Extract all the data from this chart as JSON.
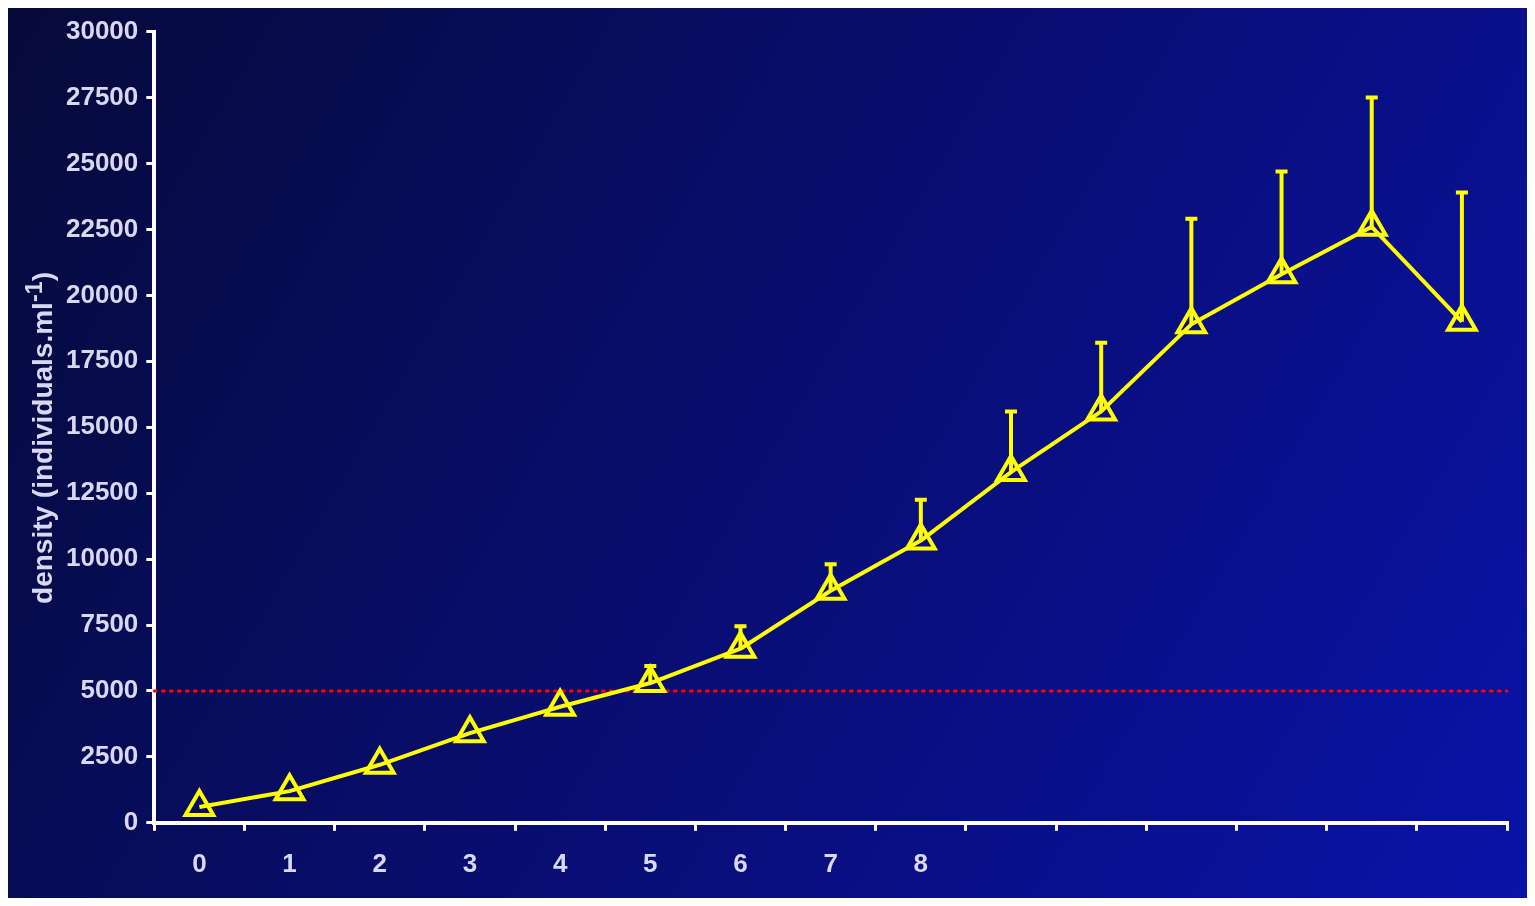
{
  "chart_data": {
    "type": "line",
    "ylabel": "density (individuals.ml$^{-1}$)",
    "categories": [
      "0",
      "1",
      "2",
      "3",
      "4",
      "5",
      "6",
      "7",
      "8",
      null,
      null,
      null,
      null,
      null,
      null
    ],
    "series": [
      {
        "color": "#ffff00",
        "values": [
          600,
          1200,
          2200,
          3400,
          4400,
          5300,
          6600,
          8800,
          10700,
          13300,
          15600,
          18900,
          20800,
          22600,
          19000
        ],
        "errors": [
          null,
          null,
          null,
          null,
          null,
          [
            5300,
            5950
          ],
          [
            6600,
            7450
          ],
          [
            8800,
            9800
          ],
          [
            10700,
            12250
          ],
          [
            13300,
            15600
          ],
          [
            15600,
            18200
          ],
          [
            18900,
            22900
          ],
          [
            20800,
            24700
          ],
          [
            22600,
            27500
          ],
          [
            19000,
            23900
          ]
        ]
      }
    ],
    "ylim": [
      0,
      30000
    ],
    "yticks": [
      0,
      2500,
      5000,
      7500,
      10000,
      12500,
      15000,
      17500,
      20000,
      22500,
      25000,
      27500,
      30000
    ],
    "ref_lines": [
      {
        "axis": "y",
        "value": 5000,
        "color": "#ff0000",
        "line_style": "dotted"
      }
    ],
    "grid": false,
    "legend": false,
    "marker": "triangle",
    "line_style": "solid"
  }
}
